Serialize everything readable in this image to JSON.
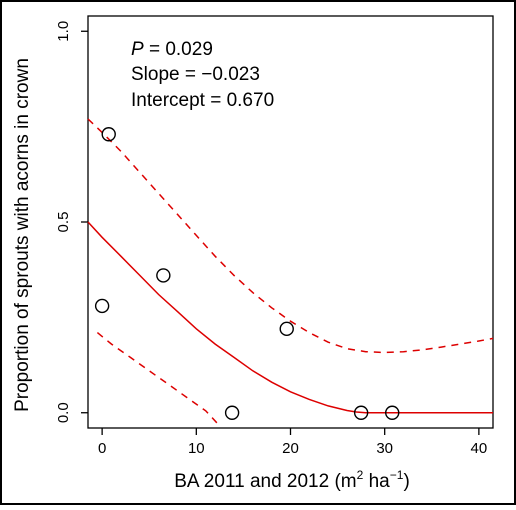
{
  "chart_data": {
    "type": "scatter",
    "xlabel": "BA 2011 and 2012 (m",
    "xlabel_sup1": "2",
    "xlabel_mid": " ha",
    "xlabel_sup2": "−1",
    "xlabel_end": ")",
    "ylabel": "Proportion of sprouts with acorns in crown",
    "xlim": [
      -1.5,
      41.5
    ],
    "ylim": [
      -0.04,
      1.04
    ],
    "x_ticks": [
      0,
      10,
      20,
      30,
      40
    ],
    "x_tick_labels": [
      "0",
      "10",
      "20",
      "30",
      "40"
    ],
    "y_ticks": [
      0.0,
      0.5,
      1.0
    ],
    "y_tick_labels": [
      "0.0",
      "0.5",
      "1.0"
    ],
    "grid": false,
    "points": [
      {
        "x": 0.0,
        "y": 0.28
      },
      {
        "x": 0.7,
        "y": 0.73
      },
      {
        "x": 6.5,
        "y": 0.36
      },
      {
        "x": 13.8,
        "y": 0.0
      },
      {
        "x": 19.6,
        "y": 0.22
      },
      {
        "x": 27.5,
        "y": 0.0
      },
      {
        "x": 30.8,
        "y": 0.0
      }
    ],
    "fit_color": "#dd0000",
    "fit_line": {
      "x": [
        -1.5,
        0,
        2,
        4,
        6,
        8,
        10,
        12,
        14,
        16,
        18,
        20,
        22,
        24,
        26,
        27,
        28,
        30,
        32,
        34,
        36,
        38,
        40,
        41.5
      ],
      "y": [
        0.5,
        0.46,
        0.41,
        0.36,
        0.31,
        0.265,
        0.22,
        0.18,
        0.145,
        0.11,
        0.08,
        0.055,
        0.035,
        0.018,
        0.006,
        0.002,
        0.0,
        0.0,
        0.0,
        0.0,
        0.0,
        0.0,
        0.0,
        0.0
      ]
    },
    "upper_band": {
      "x": [
        -1.5,
        0,
        2,
        4,
        6,
        8,
        10,
        12,
        14,
        16,
        18,
        20,
        22,
        24,
        26,
        28,
        30,
        32,
        34,
        36,
        38,
        40,
        41.5
      ],
      "y": [
        0.77,
        0.735,
        0.685,
        0.63,
        0.575,
        0.52,
        0.465,
        0.41,
        0.36,
        0.315,
        0.275,
        0.24,
        0.21,
        0.185,
        0.168,
        0.16,
        0.158,
        0.16,
        0.165,
        0.172,
        0.18,
        0.188,
        0.195
      ]
    },
    "lower_band": {
      "x": [
        -0.5,
        1,
        3,
        5,
        7,
        9,
        11,
        12.5
      ],
      "y": [
        0.21,
        0.18,
        0.145,
        0.11,
        0.075,
        0.04,
        0.005,
        -0.035
      ]
    },
    "annotations": {
      "p_label": "P",
      "p_value": " = 0.029",
      "slope": "Slope = −0.023",
      "intercept": "Intercept = 0.670"
    }
  }
}
